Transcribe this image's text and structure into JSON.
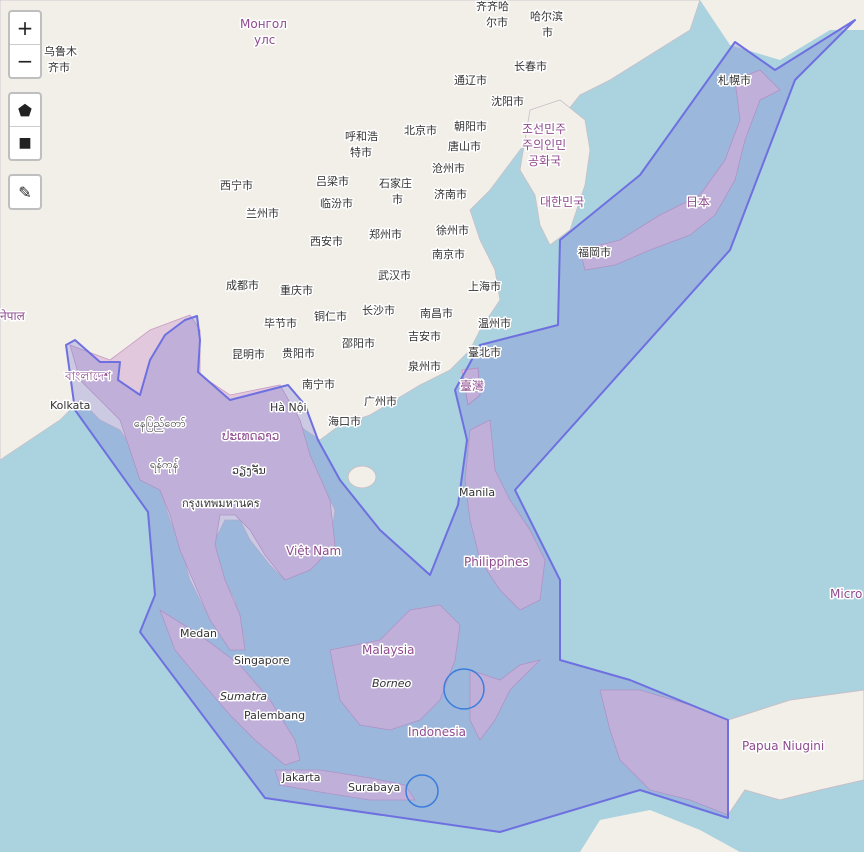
{
  "map": {
    "colors": {
      "water": "#aad3df",
      "land": "#f2efe9",
      "region_fill": "#e2c8dc",
      "overlay_fill": "#7b7fd4",
      "overlay_stroke": "#6f70e0",
      "circle_stroke": "#3b7ddd"
    },
    "labels": {
      "mongol": [
        "Монгол",
        "улс"
      ],
      "urumqi": [
        "乌鲁木",
        "齐市"
      ],
      "qiqihar": [
        "齐齐哈",
        "尔市"
      ],
      "harbin": [
        "哈尔滨",
        "市"
      ],
      "changchun": "长春市",
      "tonghua": "通辽市",
      "shenyang": "沈阳市",
      "hohhot": [
        "呼和浩",
        "特市"
      ],
      "beijing": "北京市",
      "chaoyang": "朝阳市",
      "tangshan": "唐山市",
      "nk": [
        "조선민주",
        "주의인민",
        "공화국"
      ],
      "xining": "西宁市",
      "lanzhou": "兰州市",
      "lvliang": "吕梁市",
      "linfen": "临汾市",
      "shijiazhuang": [
        "石家庄",
        "市"
      ],
      "cangzhou": "沧州市",
      "jinan": "济南市",
      "sk": "대한민국",
      "japan": "日本",
      "sapporo": "札幌市",
      "fukuoka": "福岡市",
      "xian": "西安市",
      "zhengzhou": "郑州市",
      "xuzhou": "徐州市",
      "nanjing": "南京市",
      "chengdu": "成都市",
      "chongqing": "重庆市",
      "wuhan": "武汉市",
      "shanghai": "上海市",
      "bijie": "毕节市",
      "tongren": "铜仁市",
      "changsha": "长沙市",
      "nanchang": "南昌市",
      "wenzhou": "温州市",
      "shaoyang": "邵阳市",
      "jian": "吉安市",
      "kunming": "昆明市",
      "guiyang": "贵阳市",
      "quanzhou": "泉州市",
      "taibei": "臺北市",
      "nanning": "南宁市",
      "guangzhou": "广州市",
      "taiwan": "臺灣",
      "haikou": "海口市",
      "bangladesh": "বাংলাদেশ",
      "nepal": "नेपाल",
      "kolkata": "Kolkata",
      "hanoi": "Hà Nội",
      "naypyi": "နေပြည်တော်",
      "laos": "ປະເທດລາວ",
      "myanmar": "ရန်ကုန်",
      "vientiane": "ວຽງຈັນ",
      "bangkok": "กรุงเทพมหานคร",
      "vietnam": "Việt Nam",
      "manila": "Manila",
      "philippines": "Philippines",
      "medan": "Medan",
      "singapore": "Singapore",
      "malaysia": "Malaysia",
      "sumatra": "Sumatra",
      "borneo": "Borneo",
      "palembang": "Palembang",
      "indonesia": "Indonesia",
      "jakarta": "Jakarta",
      "surabaya": "Surabaya",
      "png": "Papua Niugini",
      "micro": "Micro"
    }
  },
  "controls": {
    "zoom_in": "+",
    "zoom_out": "−",
    "draw_polygon": "⬟",
    "draw_rectangle": "■",
    "edit": "✎"
  }
}
